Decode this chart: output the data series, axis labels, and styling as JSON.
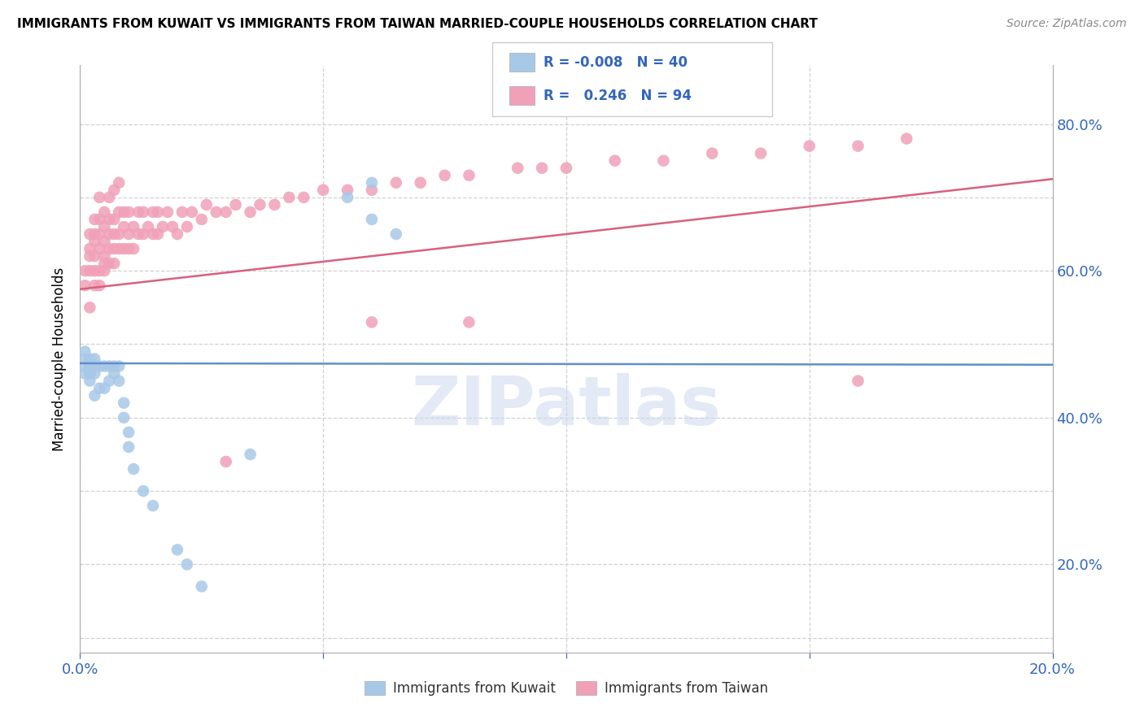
{
  "title": "IMMIGRANTS FROM KUWAIT VS IMMIGRANTS FROM TAIWAN MARRIED-COUPLE HOUSEHOLDS CORRELATION CHART",
  "source": "Source: ZipAtlas.com",
  "ylabel": "Married-couple Households",
  "xmin": 0.0,
  "xmax": 0.2,
  "ymin": 0.08,
  "ymax": 0.88,
  "color_kuwait": "#a8c8e8",
  "color_taiwan": "#f0a0b8",
  "line_color_kuwait": "#6090c8",
  "line_color_taiwan": "#d86080",
  "legend_R_kuwait": "-0.008",
  "legend_N_kuwait": "40",
  "legend_R_taiwan": "0.246",
  "legend_N_taiwan": "94",
  "kuwait_x": [
    0.001,
    0.001,
    0.001,
    0.001,
    0.002,
    0.002,
    0.002,
    0.002,
    0.002,
    0.002,
    0.002,
    0.003,
    0.003,
    0.003,
    0.003,
    0.004,
    0.004,
    0.005,
    0.005,
    0.006,
    0.006,
    0.007,
    0.007,
    0.008,
    0.008,
    0.009,
    0.009,
    0.01,
    0.01,
    0.011,
    0.013,
    0.015,
    0.02,
    0.022,
    0.025,
    0.035,
    0.055,
    0.06,
    0.06,
    0.065
  ],
  "kuwait_y": [
    0.47,
    0.48,
    0.46,
    0.49,
    0.47,
    0.46,
    0.48,
    0.47,
    0.46,
    0.47,
    0.45,
    0.47,
    0.46,
    0.48,
    0.43,
    0.47,
    0.44,
    0.47,
    0.44,
    0.47,
    0.45,
    0.47,
    0.46,
    0.47,
    0.45,
    0.42,
    0.4,
    0.38,
    0.36,
    0.33,
    0.3,
    0.28,
    0.22,
    0.2,
    0.17,
    0.35,
    0.7,
    0.72,
    0.67,
    0.65
  ],
  "taiwan_x": [
    0.001,
    0.001,
    0.002,
    0.002,
    0.002,
    0.002,
    0.003,
    0.003,
    0.003,
    0.003,
    0.003,
    0.004,
    0.004,
    0.004,
    0.004,
    0.004,
    0.005,
    0.005,
    0.005,
    0.005,
    0.005,
    0.006,
    0.006,
    0.006,
    0.006,
    0.007,
    0.007,
    0.007,
    0.007,
    0.008,
    0.008,
    0.008,
    0.008,
    0.009,
    0.009,
    0.009,
    0.01,
    0.01,
    0.01,
    0.011,
    0.011,
    0.012,
    0.012,
    0.013,
    0.013,
    0.014,
    0.015,
    0.015,
    0.016,
    0.016,
    0.017,
    0.018,
    0.019,
    0.02,
    0.021,
    0.022,
    0.023,
    0.025,
    0.026,
    0.028,
    0.03,
    0.032,
    0.035,
    0.037,
    0.04,
    0.043,
    0.046,
    0.05,
    0.055,
    0.06,
    0.065,
    0.07,
    0.075,
    0.08,
    0.09,
    0.095,
    0.1,
    0.11,
    0.12,
    0.13,
    0.14,
    0.15,
    0.16,
    0.17,
    0.002,
    0.003,
    0.004,
    0.005,
    0.006,
    0.007,
    0.03,
    0.06,
    0.08,
    0.16
  ],
  "taiwan_y": [
    0.6,
    0.58,
    0.62,
    0.63,
    0.65,
    0.6,
    0.64,
    0.62,
    0.65,
    0.6,
    0.67,
    0.63,
    0.65,
    0.67,
    0.6,
    0.7,
    0.62,
    0.64,
    0.66,
    0.61,
    0.68,
    0.63,
    0.65,
    0.67,
    0.7,
    0.63,
    0.65,
    0.67,
    0.71,
    0.63,
    0.65,
    0.68,
    0.72,
    0.63,
    0.66,
    0.68,
    0.63,
    0.65,
    0.68,
    0.63,
    0.66,
    0.65,
    0.68,
    0.65,
    0.68,
    0.66,
    0.65,
    0.68,
    0.65,
    0.68,
    0.66,
    0.68,
    0.66,
    0.65,
    0.68,
    0.66,
    0.68,
    0.67,
    0.69,
    0.68,
    0.68,
    0.69,
    0.68,
    0.69,
    0.69,
    0.7,
    0.7,
    0.71,
    0.71,
    0.71,
    0.72,
    0.72,
    0.73,
    0.73,
    0.74,
    0.74,
    0.74,
    0.75,
    0.75,
    0.76,
    0.76,
    0.77,
    0.77,
    0.78,
    0.55,
    0.58,
    0.58,
    0.6,
    0.61,
    0.61,
    0.34,
    0.53,
    0.53,
    0.45
  ]
}
